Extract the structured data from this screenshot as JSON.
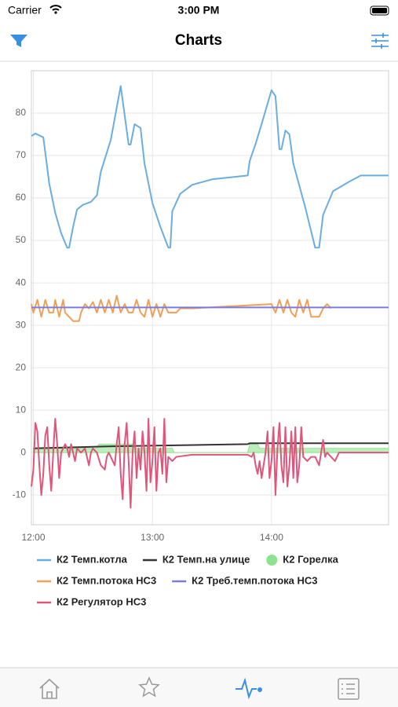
{
  "status_bar": {
    "carrier": "Carrier",
    "time": "3:00 PM"
  },
  "nav_bar": {
    "title": "Charts"
  },
  "chart_data": {
    "type": "line",
    "xlim": [
      719,
      899
    ],
    "xticks": [
      {
        "value": 720,
        "label": "12:00"
      },
      {
        "value": 780,
        "label": "13:00"
      },
      {
        "value": 840,
        "label": "14:00"
      }
    ],
    "ylim": [
      -17,
      90
    ],
    "yticks": [
      -10,
      0,
      10,
      20,
      30,
      40,
      50,
      60,
      70,
      80
    ],
    "grid": true,
    "series": [
      {
        "name": "К2 Темп.котла",
        "color": "#6aaee0",
        "style": "line",
        "x": [
          719,
          721,
          725,
          728,
          731,
          734,
          737,
          738,
          740,
          742,
          745,
          749,
          752,
          754,
          759,
          764,
          768,
          769,
          771,
          774,
          776,
          780,
          784,
          788,
          789,
          790,
          794,
          800,
          810,
          828,
          829,
          832,
          835,
          840,
          842,
          844,
          845,
          847,
          849,
          851,
          857,
          862,
          864,
          866,
          871,
          879,
          885,
          899
        ],
        "values": [
          74.6,
          75.2,
          74.3,
          63.4,
          56.5,
          51.7,
          48.3,
          48.3,
          53.2,
          57.3,
          58.4,
          59.1,
          60.6,
          66.2,
          73.7,
          86.4,
          72.6,
          72.6,
          77.4,
          76.5,
          68.1,
          58.8,
          53.2,
          48.3,
          48.3,
          56.9,
          61,
          63.1,
          64.4,
          65.3,
          68.7,
          72.8,
          77.4,
          85.4,
          84,
          71.5,
          71.5,
          75.9,
          75,
          68.1,
          57.8,
          48.3,
          48.3,
          56,
          61.6,
          63.8,
          65.3,
          65.3
        ]
      },
      {
        "name": "К2 Темп.на улице",
        "color": "#333333",
        "style": "line",
        "x": [
          720,
          760,
          828,
          829,
          899
        ],
        "values": [
          1,
          1.5,
          2,
          2.2,
          2.2
        ]
      },
      {
        "name": "К2 Горелка",
        "color": "#8fe38f",
        "style": "area",
        "x": [
          720,
          752,
          753,
          770,
          771,
          790,
          791,
          828,
          829,
          833,
          834,
          899
        ],
        "values": [
          1,
          1,
          2,
          2,
          1,
          1,
          0,
          0,
          2,
          2,
          1,
          1
        ]
      },
      {
        "name": "К2 Темп.потока НС3",
        "color": "#f0a055",
        "style": "line",
        "x": [
          719,
          720,
          722,
          724,
          726,
          728,
          730,
          731,
          733,
          735,
          736,
          738,
          740,
          743,
          744,
          746,
          748,
          750,
          752,
          754,
          756,
          758,
          760,
          762,
          764,
          766,
          768,
          770,
          772,
          774,
          776,
          778,
          780,
          782,
          784,
          786,
          788,
          792,
          794,
          800,
          840,
          842,
          844,
          846,
          848,
          850,
          852,
          854,
          856,
          858,
          860,
          864,
          866,
          868,
          870
        ],
        "values": [
          35,
          33,
          36,
          32,
          36,
          33,
          33,
          36,
          32,
          36,
          33,
          32,
          31,
          31,
          33,
          35,
          34,
          35.5,
          33,
          36,
          33,
          36,
          33,
          37,
          33,
          35,
          33,
          33,
          36,
          33,
          32,
          36,
          32,
          35,
          32,
          35,
          33,
          33,
          34,
          34,
          35,
          33,
          36,
          33,
          36,
          33,
          32,
          36,
          33,
          36,
          32,
          32,
          34,
          35,
          34
        ]
      },
      {
        "name": "К2 Треб.темп.потока НС3",
        "color": "#7b7be0",
        "style": "line",
        "x": [
          719,
          899
        ],
        "values": [
          34.2,
          34.2
        ]
      },
      {
        "name": "К2 Регулятор НС3",
        "color": "#e0557a",
        "style": "line",
        "x": [
          719,
          720,
          721,
          722,
          723,
          724,
          725,
          726,
          727,
          728,
          729,
          730,
          731,
          732,
          733,
          734,
          735,
          736,
          737,
          738,
          739,
          740,
          741,
          742,
          744,
          746,
          748,
          749,
          750,
          752,
          754,
          756,
          757,
          758,
          760,
          761,
          762,
          763,
          764,
          765,
          766,
          767,
          768,
          769,
          770,
          771,
          772,
          773,
          774,
          775,
          776,
          777,
          778,
          779,
          780,
          781,
          782,
          783,
          784,
          785,
          786,
          787,
          788,
          790,
          792,
          800,
          828,
          830,
          831,
          832,
          833,
          834,
          835,
          836,
          837,
          838,
          839,
          840,
          841,
          842,
          843,
          844,
          845,
          846,
          847,
          848,
          849,
          850,
          851,
          852,
          853,
          854,
          855,
          856,
          858,
          860,
          862,
          864,
          866,
          867,
          868,
          870,
          872,
          874,
          899
        ],
        "values": [
          -8,
          -4,
          7,
          5,
          -3,
          -10,
          -5,
          4,
          6,
          -3,
          -9,
          0,
          8,
          2,
          -6,
          0,
          1,
          2,
          1,
          -1,
          2,
          0,
          -2,
          1,
          0,
          1,
          -3,
          0,
          1,
          0,
          -3,
          -4,
          -1,
          0,
          -2,
          -3,
          2,
          6,
          -5,
          -11,
          2,
          7,
          -2,
          -13,
          0,
          5,
          -6,
          1,
          -4,
          5,
          0,
          -9,
          8,
          -7,
          -2,
          6,
          -9,
          0,
          1,
          -5,
          8,
          -7,
          -1,
          -2,
          -1,
          -0.5,
          -0.5,
          -1,
          0,
          -3,
          -5,
          -2,
          -6,
          -3,
          0,
          5,
          -6,
          -2,
          6,
          -10,
          1,
          7,
          -3,
          -7,
          6,
          -8,
          -3,
          5,
          -6,
          6,
          -7,
          -3,
          6,
          -1,
          -2,
          -1,
          -1,
          -3,
          3,
          -1,
          0,
          -1,
          -2,
          0,
          0
        ]
      }
    ]
  }
}
